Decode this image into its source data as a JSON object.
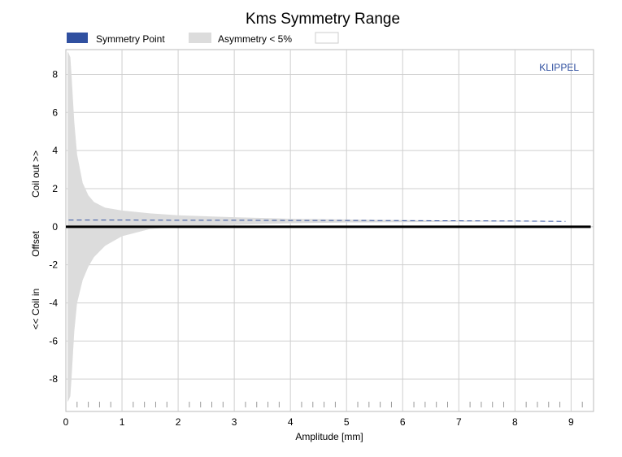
{
  "chart_data": {
    "type": "area",
    "title": "Kms Symmetry Range",
    "xlabel": "Amplitude [mm]",
    "ylabel_parts": [
      "Coil out >>",
      "Offset",
      "<< Coil in"
    ],
    "xlim": [
      0,
      9.4
    ],
    "ylim": [
      -9.7,
      9.3
    ],
    "x_ticks": [
      0,
      1,
      2,
      3,
      4,
      5,
      6,
      7,
      8,
      9
    ],
    "y_ticks": [
      -8,
      -6,
      -4,
      -2,
      0,
      2,
      4,
      6,
      8
    ],
    "grid": true,
    "legend_position": "top",
    "watermark": "KLIPPEL",
    "legend": [
      "Symmetry Point",
      "Asymmetry < 5%",
      ""
    ],
    "series": [
      {
        "name": "Asymmetry < 5%",
        "kind": "band",
        "color": "#dcdcdc",
        "x": [
          0.03,
          0.05,
          0.08,
          0.1,
          0.15,
          0.2,
          0.3,
          0.4,
          0.5,
          0.7,
          1.0,
          1.5,
          2.0,
          3.0,
          4.0,
          5.0,
          6.0,
          7.0,
          8.0,
          8.5,
          8.9
        ],
        "upper": [
          9.2,
          9.1,
          8.9,
          8.0,
          5.5,
          3.8,
          2.3,
          1.65,
          1.3,
          1.0,
          0.85,
          0.7,
          0.6,
          0.5,
          0.42,
          0.38,
          0.35,
          0.33,
          0.31,
          0.3,
          0.28
        ],
        "lower": [
          -9.2,
          -9.1,
          -8.9,
          -8.0,
          -5.5,
          -4.0,
          -2.8,
          -2.1,
          -1.6,
          -1.0,
          -0.5,
          -0.12,
          0.0,
          0.1,
          0.18,
          0.22,
          0.24,
          0.26,
          0.27,
          0.27,
          0.28
        ]
      },
      {
        "name": "Symmetry Point",
        "kind": "dashed-line",
        "color": "#3050a0",
        "x": [
          0.05,
          1.0,
          2.0,
          3.0,
          4.0,
          5.0,
          6.0,
          7.0,
          8.0,
          8.9
        ],
        "y": [
          0.35,
          0.35,
          0.34,
          0.34,
          0.33,
          0.33,
          0.32,
          0.31,
          0.3,
          0.28
        ]
      },
      {
        "name": "Offset zero line",
        "kind": "line",
        "color": "#000000",
        "x": [
          0.0,
          9.35
        ],
        "y": [
          0.0,
          0.0
        ]
      }
    ]
  }
}
